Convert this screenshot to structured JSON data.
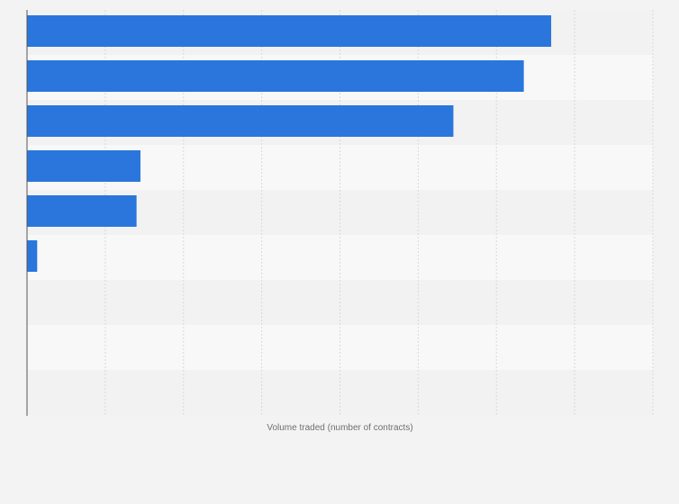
{
  "chart_data": {
    "type": "bar",
    "orientation": "horizontal",
    "categories": [
      "",
      "",
      "",
      "",
      "",
      "",
      "",
      "",
      ""
    ],
    "values": [
      6700000,
      6350000,
      5450000,
      1450000,
      1400000,
      130000,
      0,
      0,
      0
    ],
    "xlabel": "Volume traded (number of contracts)",
    "ylabel": "",
    "xlim": [
      0,
      8000000
    ],
    "grid": true,
    "colors": {
      "bar": "#2a76dd",
      "band_light": "#f8f8f8",
      "band_dark": "#f2f2f2",
      "grid": "#d9d9d9",
      "axis": "#555555",
      "background": "#f3f3f3"
    }
  }
}
